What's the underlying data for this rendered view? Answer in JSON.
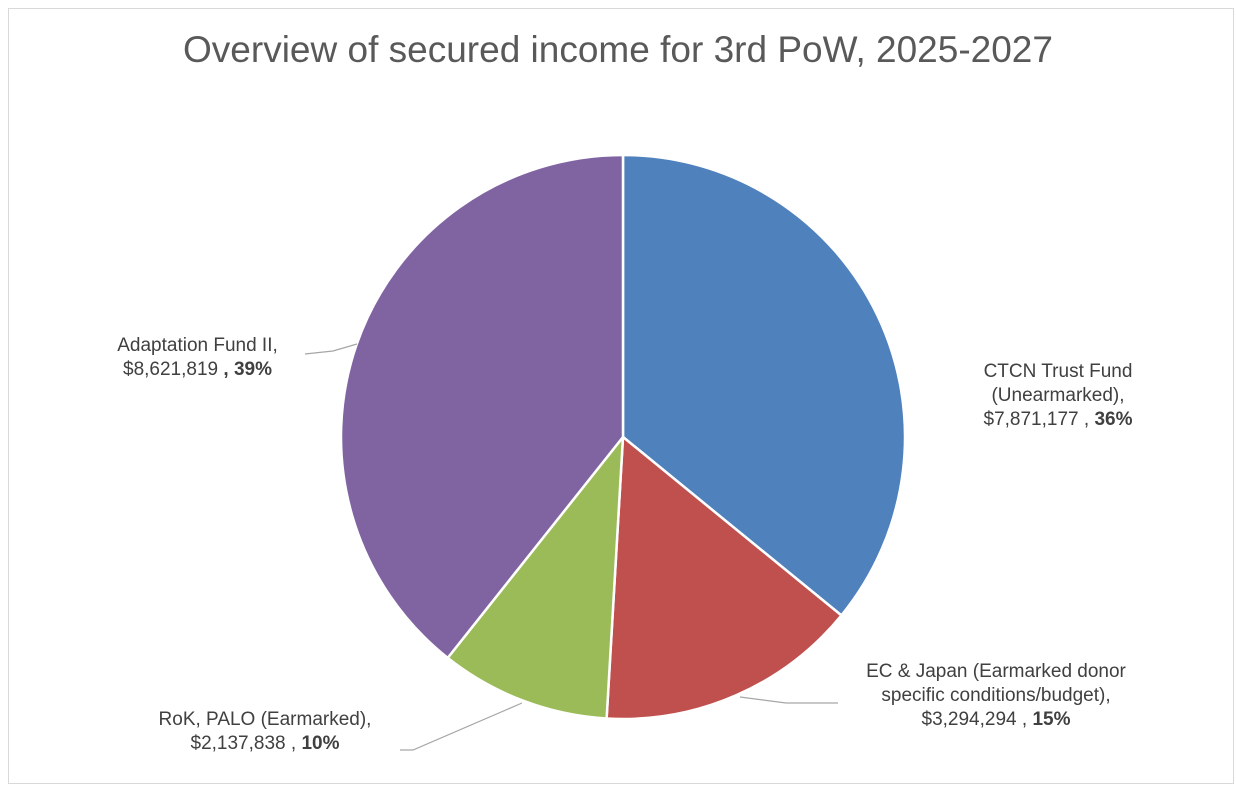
{
  "chart_data": {
    "type": "pie",
    "title": "Overview of secured income for 3rd PoW, 2025-2027",
    "slices": [
      {
        "name": "CTCN Trust Fund (Unearmarked)",
        "value": 7871177,
        "value_label": "$7,871,177",
        "percent_label": "36%",
        "color": "#4f81bd"
      },
      {
        "name": "EC & Japan (Earmarked donor specific conditions/budget)",
        "value": 3294294,
        "value_label": "$3,294,294",
        "percent_label": "15%",
        "color": "#c0504d"
      },
      {
        "name": "RoK, PALO (Earmarked)",
        "value": 2137838,
        "value_label": "$2,137,838",
        "percent_label": "10%",
        "color": "#9bbb59"
      },
      {
        "name": "Adaptation Fund II",
        "value": 8621819,
        "value_label": "$8,621,819",
        "percent_label": "39%",
        "color": "#8064a2"
      }
    ],
    "labels": {
      "ctcn": {
        "line1": "CTCN Trust Fund",
        "line2": "(Unearmarked),",
        "line3": "$7,871,177 , ",
        "pct": "36%"
      },
      "ec": {
        "line1": "EC & Japan (Earmarked donor",
        "line2": "specific conditions/budget),",
        "line3": "$3,294,294 , ",
        "pct": "15%"
      },
      "rok": {
        "line1": "RoK, PALO (Earmarked),",
        "line2": "$2,137,838 , ",
        "pct": "10%"
      },
      "af": {
        "line1": "Adaptation Fund II,",
        "line2": "$8,621,819 ",
        "pct": ", 39%"
      }
    }
  }
}
